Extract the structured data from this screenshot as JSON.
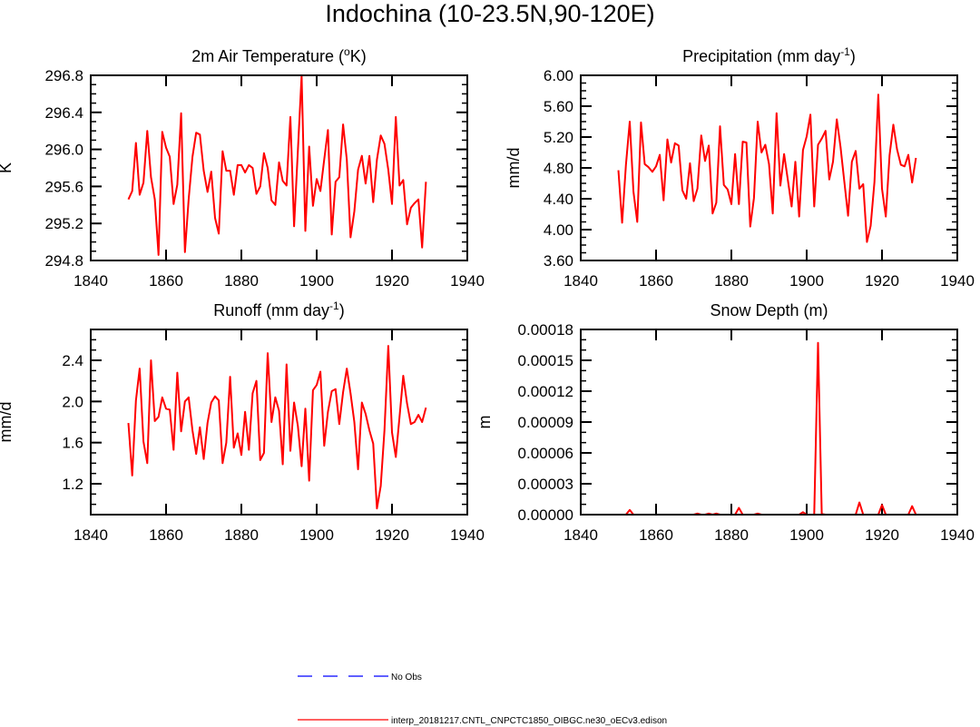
{
  "title": "Indochina (10-23.5N,90-120E)",
  "colors": {
    "series": "#ff0000",
    "obs": "#0000ff",
    "axis": "#000000"
  },
  "legend": [
    {
      "label": "No Obs",
      "style": "dashed",
      "color": "#0000ff"
    },
    {
      "label": "interp_20181217.CNTL_CNPCTC1850_OIBGC.ne30_oECv3.edison",
      "style": "solid",
      "color": "#ff0000"
    }
  ],
  "chart_data": [
    {
      "type": "line",
      "position": "top-left",
      "title": "2m Air Temperature (",
      "title_sup": "o",
      "title_end": "K)",
      "ylabel": "K",
      "xlim": [
        1840,
        1940
      ],
      "ylim": [
        294.8,
        296.8
      ],
      "xticks": [
        "1840",
        "1860",
        "1880",
        "1900",
        "1920",
        "1940"
      ],
      "yticks": [
        "294.8",
        "295.2",
        "295.6",
        "296.0",
        "296.4",
        "296.8"
      ],
      "ytick_values": [
        294.8,
        295.2,
        295.6,
        296.0,
        296.4,
        296.8
      ],
      "yminor": 0.1,
      "x_start": 1850,
      "values": [
        295.46,
        295.55,
        296.07,
        295.51,
        295.64,
        296.2,
        295.7,
        295.46,
        294.86,
        296.19,
        296.02,
        295.92,
        295.41,
        295.62,
        296.39,
        294.89,
        295.46,
        295.92,
        296.18,
        296.16,
        295.77,
        295.54,
        295.76,
        295.26,
        295.09,
        295.98,
        295.77,
        295.77,
        295.51,
        295.83,
        295.83,
        295.75,
        295.83,
        295.8,
        295.52,
        295.6,
        295.96,
        295.8,
        295.45,
        295.4,
        295.86,
        295.66,
        295.61,
        296.35,
        295.17,
        295.99,
        296.8,
        295.12,
        296.03,
        295.39,
        295.68,
        295.55,
        295.89,
        296.21,
        295.08,
        295.65,
        295.7,
        296.27,
        295.89,
        295.05,
        295.33,
        295.78,
        295.93,
        295.63,
        295.93,
        295.43,
        295.89,
        296.15,
        296.06,
        295.78,
        295.41,
        296.35,
        295.61,
        295.67,
        295.19,
        295.37,
        295.42,
        295.46,
        294.94,
        295.65
      ]
    },
    {
      "type": "line",
      "position": "top-right",
      "title": "Precipitation (mm day",
      "title_sup": "-1",
      "title_end": ")",
      "ylabel": "mm/d",
      "xlim": [
        1840,
        1940
      ],
      "ylim": [
        3.6,
        6.0
      ],
      "xticks": [
        "1840",
        "1860",
        "1880",
        "1900",
        "1920",
        "1940"
      ],
      "yticks": [
        "3.60",
        "4.00",
        "4.40",
        "4.80",
        "5.20",
        "5.60",
        "6.00"
      ],
      "ytick_values": [
        3.6,
        4.0,
        4.4,
        4.8,
        5.2,
        5.6,
        6.0
      ],
      "yminor": 0.1,
      "x_start": 1850,
      "values": [
        4.77,
        4.09,
        4.84,
        5.4,
        4.49,
        4.1,
        5.39,
        4.85,
        4.81,
        4.75,
        4.82,
        4.97,
        4.38,
        5.17,
        4.87,
        5.12,
        5.09,
        4.51,
        4.4,
        4.86,
        4.37,
        4.53,
        5.22,
        4.89,
        5.09,
        4.21,
        4.35,
        5.34,
        4.58,
        4.52,
        4.33,
        4.98,
        4.33,
        5.14,
        5.13,
        4.04,
        4.41,
        5.4,
        5.0,
        5.1,
        4.85,
        4.21,
        5.51,
        4.57,
        4.98,
        4.64,
        4.3,
        4.88,
        4.17,
        5.03,
        5.21,
        5.49,
        4.3,
        5.1,
        5.18,
        5.28,
        4.65,
        4.88,
        5.43,
        5.07,
        4.62,
        4.18,
        4.88,
        5.02,
        4.53,
        4.59,
        3.84,
        4.05,
        4.62,
        5.75,
        4.53,
        4.17,
        4.96,
        5.36,
        5.04,
        4.84,
        4.82,
        4.97,
        4.61,
        4.93
      ]
    },
    {
      "type": "line",
      "position": "bottom-left",
      "title": "Runoff (mm day",
      "title_sup": "-1",
      "title_end": ")",
      "ylabel": "mm/d",
      "xlim": [
        1840,
        1940
      ],
      "ylim": [
        0.9,
        2.7
      ],
      "xticks": [
        "1840",
        "1860",
        "1880",
        "1900",
        "1920",
        "1940"
      ],
      "yticks": [
        "1.2",
        "1.6",
        "2.0",
        "2.4"
      ],
      "ytick_values": [
        1.2,
        1.6,
        2.0,
        2.4
      ],
      "yminor": 0.1,
      "x_start": 1850,
      "values": [
        1.79,
        1.28,
        2.01,
        2.32,
        1.61,
        1.4,
        2.4,
        1.81,
        1.85,
        2.04,
        1.93,
        1.92,
        1.53,
        2.28,
        1.71,
        2.0,
        2.04,
        1.72,
        1.49,
        1.75,
        1.44,
        1.79,
        1.99,
        2.05,
        2.01,
        1.4,
        1.6,
        2.24,
        1.55,
        1.69,
        1.48,
        1.9,
        1.53,
        2.08,
        2.2,
        1.43,
        1.5,
        2.47,
        1.8,
        2.04,
        1.91,
        1.39,
        2.36,
        1.52,
        1.99,
        1.76,
        1.37,
        1.93,
        1.23,
        2.11,
        2.16,
        2.29,
        1.57,
        1.9,
        2.1,
        2.12,
        1.78,
        2.09,
        2.32,
        2.08,
        1.8,
        1.34,
        1.99,
        1.88,
        1.72,
        1.59,
        0.96,
        1.18,
        1.72,
        2.54,
        1.7,
        1.46,
        1.85,
        2.25,
        1.98,
        1.78,
        1.8,
        1.87,
        1.8,
        1.94
      ]
    },
    {
      "type": "line",
      "position": "bottom-right",
      "title": "Snow Depth (m)",
      "title_sup": "",
      "title_end": "",
      "ylabel": "m",
      "xlim": [
        1840,
        1940
      ],
      "ylim": [
        0,
        0.00018
      ],
      "xticks": [
        "1840",
        "1860",
        "1880",
        "1900",
        "1920",
        "1940"
      ],
      "yticks": [
        "0.00000",
        "0.00003",
        "0.00006",
        "0.00009",
        "0.00012",
        "0.00015",
        "0.00018"
      ],
      "ytick_values": [
        0,
        3e-05,
        6e-05,
        9e-05,
        0.00012,
        0.00015,
        0.00018
      ],
      "yminor": 1e-05,
      "x_start": 1850,
      "values": [
        0,
        0,
        0,
        4.5e-06,
        0,
        0,
        0,
        0,
        0,
        0,
        0,
        0,
        0,
        0,
        0,
        0,
        0,
        0,
        0,
        0,
        0,
        1e-06,
        0,
        0,
        1e-06,
        0,
        1e-06,
        0,
        0,
        0,
        0,
        0,
        6.5e-06,
        0,
        0,
        0,
        0,
        1e-06,
        0,
        0,
        0,
        0,
        0,
        0,
        0,
        0,
        0,
        0,
        0,
        2.4e-06,
        0,
        0,
        0,
        0.000167,
        5e-07,
        0,
        0,
        0,
        0,
        0,
        0,
        0,
        0,
        0,
        1.18e-05,
        0,
        0,
        0,
        0,
        0,
        9.4e-06,
        0,
        0,
        0,
        0,
        0,
        0,
        0,
        8.2e-06,
        0
      ]
    }
  ]
}
